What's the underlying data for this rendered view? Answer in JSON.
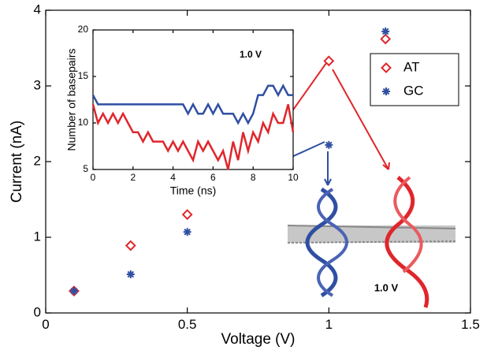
{
  "chart_data": [
    {
      "type": "scatter",
      "x_label": "Voltage (V)",
      "y_label": "Current (nA)",
      "x": [
        0.1,
        0.3,
        0.5,
        1,
        1.2
      ],
      "series": [
        {
          "name": "AT",
          "color": "#e0262b",
          "marker": "diamond",
          "values": [
            0.29,
            0.89,
            1.3,
            3.33,
            3.62
          ]
        },
        {
          "name": "GC",
          "color": "#2f4fa2",
          "marker": "asterisk",
          "values": [
            0.29,
            0.51,
            1.07,
            2.22,
            3.72
          ]
        }
      ],
      "xlim": [
        0,
        1.5
      ],
      "xticks": [
        0,
        0.5,
        1,
        1.5
      ],
      "ylim": [
        0,
        4
      ],
      "yticks": [
        0,
        1,
        2,
        3,
        4
      ],
      "annotation": "1.0 V"
    },
    {
      "type": "line",
      "x_label": "Time (ns)",
      "y_label": "Number of basepairs",
      "x": [
        0,
        0.25,
        0.5,
        0.75,
        1,
        1.25,
        1.5,
        1.75,
        2,
        2.25,
        2.5,
        2.75,
        3,
        3.25,
        3.5,
        3.75,
        4,
        4.25,
        4.5,
        4.75,
        5,
        5.25,
        5.5,
        5.75,
        6,
        6.25,
        6.5,
        6.75,
        7,
        7.25,
        7.5,
        7.75,
        8,
        8.25,
        8.5,
        8.75,
        9,
        9.25,
        9.5,
        9.75,
        10
      ],
      "series": [
        {
          "color": "#2f4fa2",
          "values": [
            13,
            12,
            12,
            12,
            12,
            12,
            12,
            12,
            12,
            12,
            12,
            12,
            12,
            12,
            12,
            12,
            12,
            12,
            12,
            11,
            12,
            11,
            11,
            12,
            11,
            12,
            11,
            11,
            11,
            10,
            11,
            10,
            11,
            13,
            13,
            14,
            14,
            13,
            14,
            13,
            13
          ]
        },
        {
          "color": "#e0262b",
          "values": [
            12,
            10,
            11,
            10,
            11,
            10,
            11,
            10,
            9,
            9,
            8,
            9,
            8,
            8,
            8,
            7,
            8,
            7,
            8,
            7,
            6,
            8,
            7,
            8,
            7,
            6,
            7,
            5,
            8,
            6,
            9,
            7,
            9,
            8,
            10,
            9,
            11,
            10,
            10,
            12,
            9
          ]
        }
      ],
      "xlim": [
        0,
        10
      ],
      "xticks": [
        0,
        2,
        4,
        6,
        8,
        10
      ],
      "ylim": [
        5,
        20
      ],
      "yticks": [
        5,
        10,
        15,
        20
      ],
      "annotation": "1.0 V"
    }
  ]
}
